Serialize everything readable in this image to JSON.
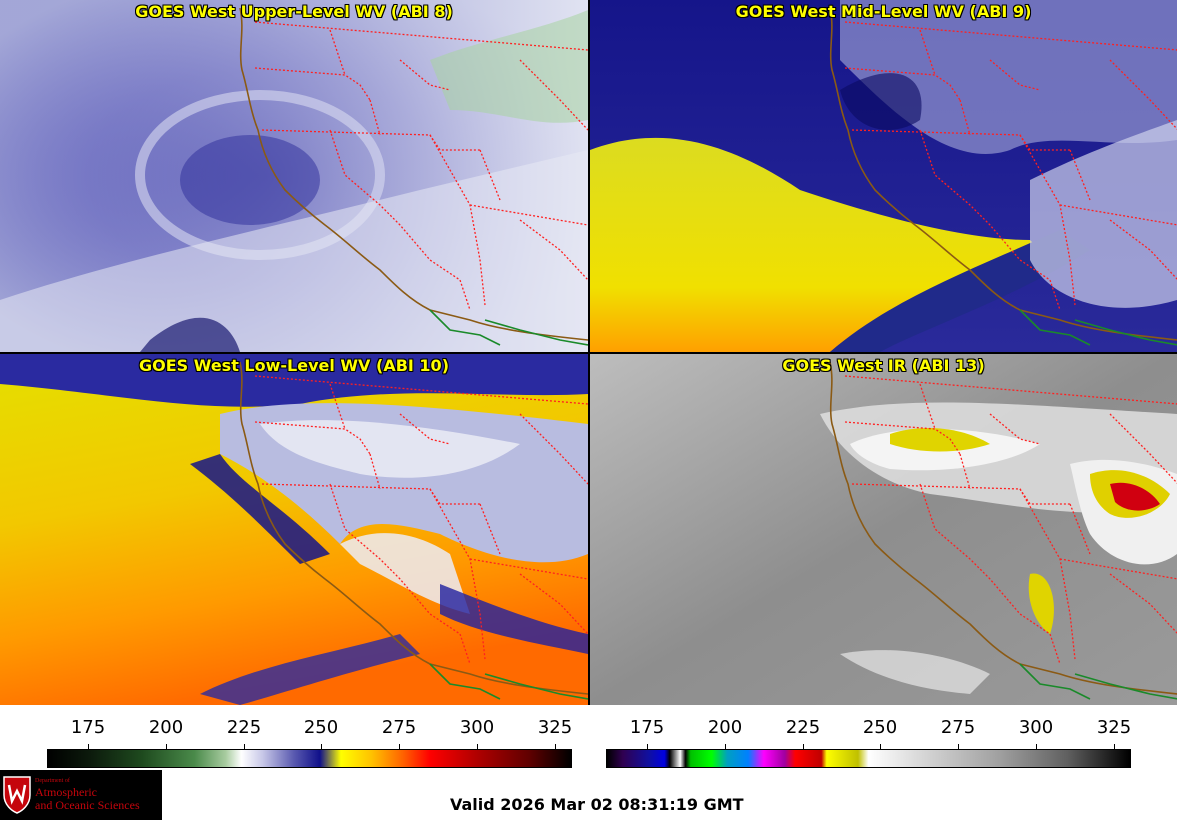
{
  "panels": [
    {
      "id": "upper",
      "title": "GOES West Upper-Level WV (ABI 8)"
    },
    {
      "id": "mid",
      "title": "GOES West Mid-Level WV (ABI 9)"
    },
    {
      "id": "low",
      "title": "GOES West Low-Level WV (ABI 10)"
    },
    {
      "id": "ir",
      "title": "GOES West IR (ABI 13)"
    }
  ],
  "colorbars": {
    "wv": {
      "ticks": [
        "175",
        "200",
        "225",
        "250",
        "275",
        "300",
        "325"
      ]
    },
    "ir": {
      "ticks": [
        "175",
        "200",
        "225",
        "250",
        "275",
        "300",
        "325"
      ]
    }
  },
  "logo": {
    "line1": "Department of",
    "line2": "Atmospheric",
    "line3": "and Oceanic Sciences"
  },
  "valid_time": "Valid 2026 Mar 02 08:31:19 GMT",
  "colors": {
    "title_text": "#ffff00",
    "state_border": "#ff2020",
    "coastline": "#8b5a14",
    "mexico_border": "#1a8a2a"
  }
}
